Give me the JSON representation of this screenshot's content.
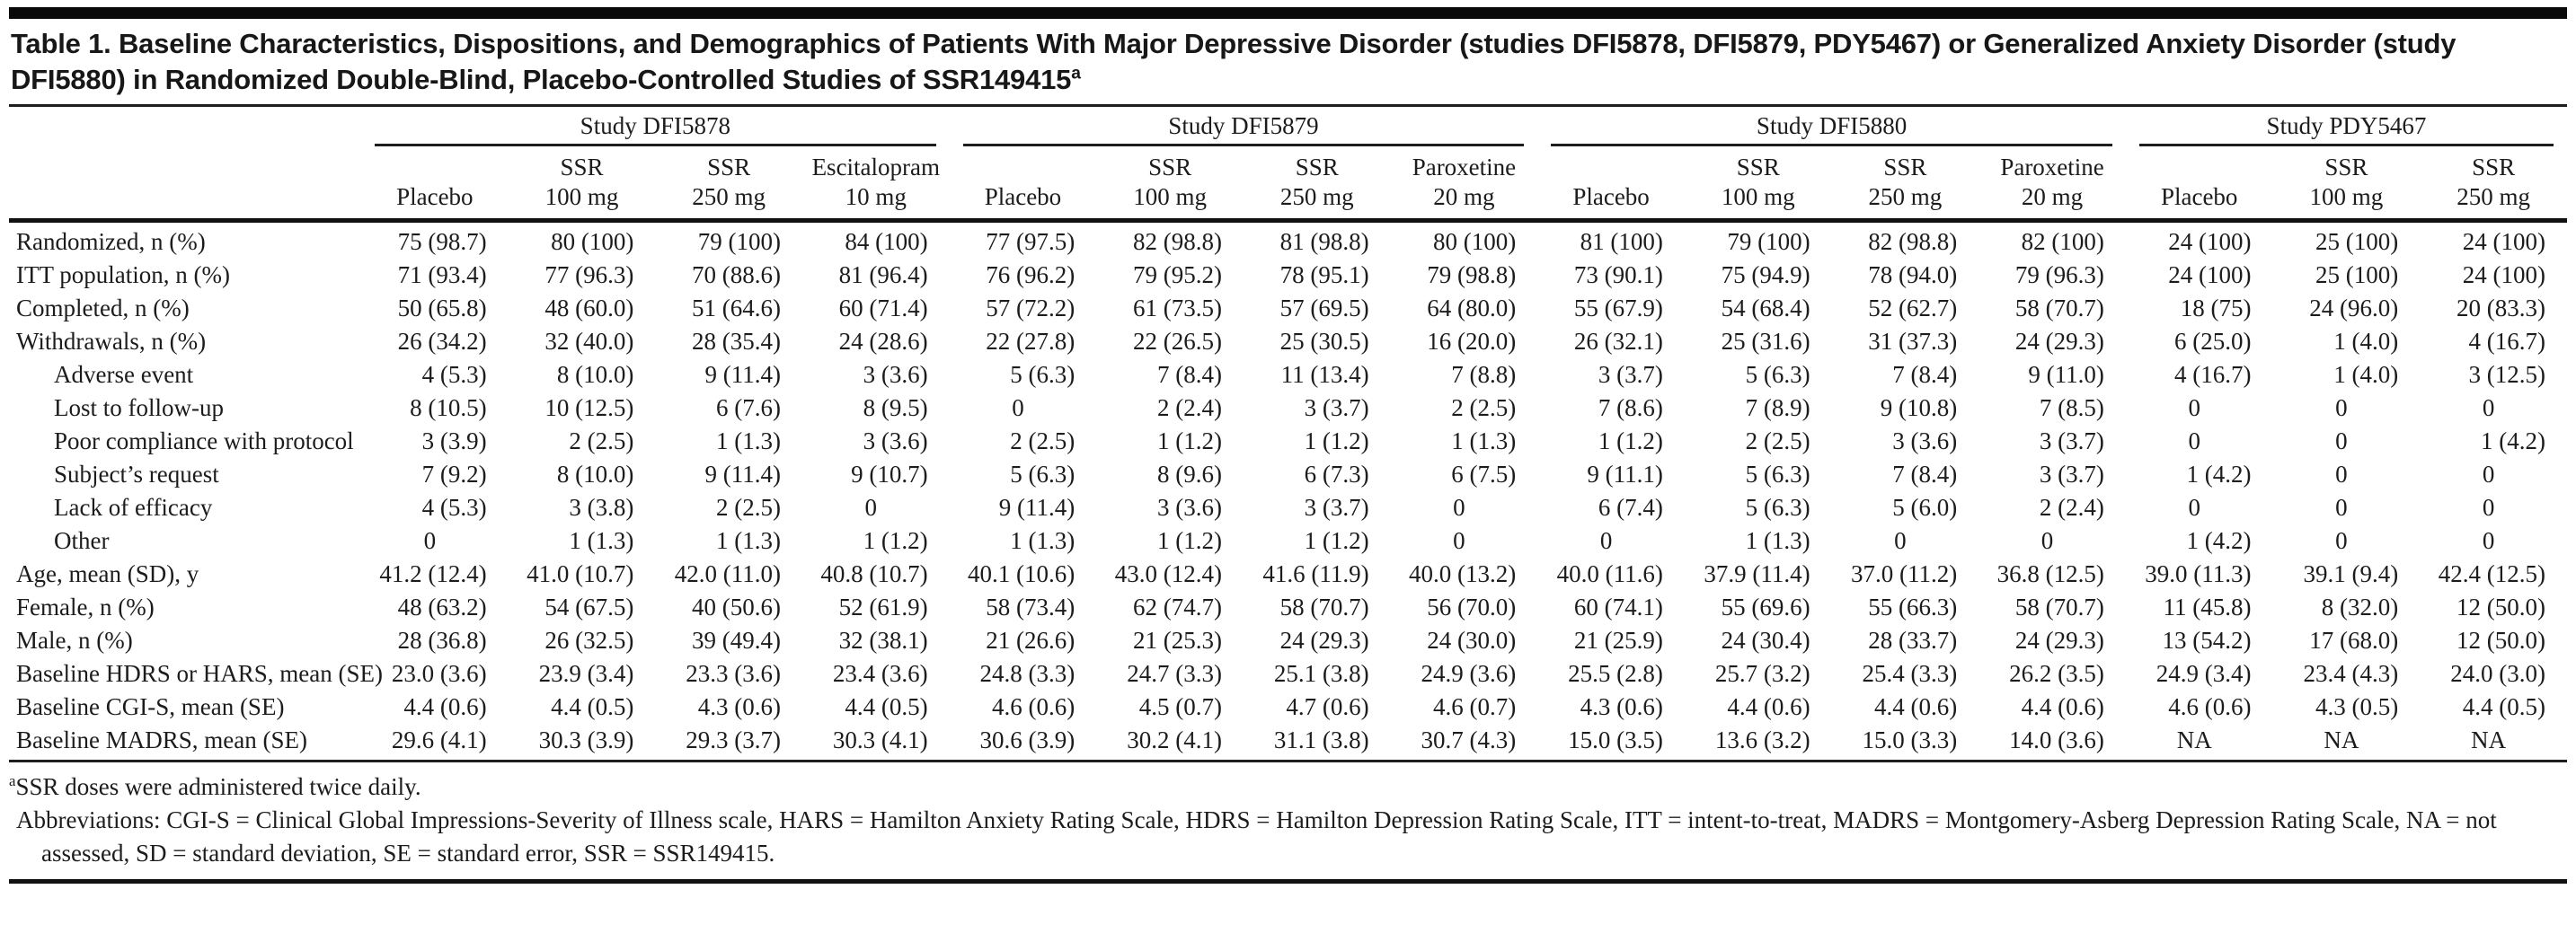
{
  "title": {
    "text": "Table 1. Baseline Characteristics, Dispositions, and Demographics of Patients With Major Depressive Disorder (studies DFI5878, DFI5879, PDY5467) or Generalized Anxiety Disorder (study DFI5880) in Randomized Double-Blind, Placebo-Controlled Studies of SSR149415",
    "superscript": "a"
  },
  "header": {
    "studies": [
      {
        "name": "Study DFI5878",
        "arms": [
          {
            "top": "",
            "bottom": "Placebo"
          },
          {
            "top": "SSR",
            "bottom": "100 mg"
          },
          {
            "top": "SSR",
            "bottom": "250 mg"
          },
          {
            "top": "Escitalopram",
            "bottom": "10 mg"
          }
        ]
      },
      {
        "name": "Study DFI5879",
        "arms": [
          {
            "top": "",
            "bottom": "Placebo"
          },
          {
            "top": "SSR",
            "bottom": "100 mg"
          },
          {
            "top": "SSR",
            "bottom": "250 mg"
          },
          {
            "top": "Paroxetine",
            "bottom": "20 mg"
          }
        ]
      },
      {
        "name": "Study DFI5880",
        "arms": [
          {
            "top": "",
            "bottom": "Placebo"
          },
          {
            "top": "SSR",
            "bottom": "100 mg"
          },
          {
            "top": "SSR",
            "bottom": "250 mg"
          },
          {
            "top": "Paroxetine",
            "bottom": "20 mg"
          }
        ]
      },
      {
        "name": "Study PDY5467",
        "arms": [
          {
            "top": "",
            "bottom": "Placebo"
          },
          {
            "top": "SSR",
            "bottom": "100 mg"
          },
          {
            "top": "SSR",
            "bottom": "250 mg"
          }
        ]
      }
    ]
  },
  "rows": [
    {
      "label": "Randomized, n (%)",
      "indent": 0,
      "values": [
        "75 (98.7)",
        "80 (100)",
        "79 (100)",
        "84 (100)",
        "77 (97.5)",
        "82 (98.8)",
        "81 (98.8)",
        "80 (100)",
        "81 (100)",
        "79 (100)",
        "82 (98.8)",
        "82 (100)",
        "24 (100)",
        "25 (100)",
        "24 (100)"
      ]
    },
    {
      "label": "ITT population, n (%)",
      "indent": 0,
      "values": [
        "71 (93.4)",
        "77 (96.3)",
        "70 (88.6)",
        "81 (96.4)",
        "76 (96.2)",
        "79 (95.2)",
        "78 (95.1)",
        "79 (98.8)",
        "73 (90.1)",
        "75 (94.9)",
        "78 (94.0)",
        "79 (96.3)",
        "24 (100)",
        "25 (100)",
        "24 (100)"
      ]
    },
    {
      "label": "Completed, n (%)",
      "indent": 0,
      "values": [
        "50 (65.8)",
        "48 (60.0)",
        "51 (64.6)",
        "60 (71.4)",
        "57 (72.2)",
        "61 (73.5)",
        "57 (69.5)",
        "64 (80.0)",
        "55 (67.9)",
        "54 (68.4)",
        "52 (62.7)",
        "58 (70.7)",
        "18 (75)",
        "24 (96.0)",
        "20 (83.3)"
      ]
    },
    {
      "label": "Withdrawals, n (%)",
      "indent": 0,
      "values": [
        "26 (34.2)",
        "32 (40.0)",
        "28 (35.4)",
        "24 (28.6)",
        "22 (27.8)",
        "22 (26.5)",
        "25 (30.5)",
        "16 (20.0)",
        "26 (32.1)",
        "25 (31.6)",
        "31 (37.3)",
        "24 (29.3)",
        "6 (25.0)",
        "1 (4.0)",
        "4 (16.7)"
      ]
    },
    {
      "label": "Adverse event",
      "indent": 1,
      "values": [
        "4 (5.3)",
        "8 (10.0)",
        "9 (11.4)",
        "3 (3.6)",
        "5 (6.3)",
        "7 (8.4)",
        "11 (13.4)",
        "7 (8.8)",
        "3 (3.7)",
        "5 (6.3)",
        "7 (8.4)",
        "9 (11.0)",
        "4 (16.7)",
        "1 (4.0)",
        "3 (12.5)"
      ]
    },
    {
      "label": "Lost to follow-up",
      "indent": 1,
      "values": [
        "8 (10.5)",
        "10 (12.5)",
        "6 (7.6)",
        "8 (9.5)",
        "0",
        "2 (2.4)",
        "3 (3.7)",
        "2 (2.5)",
        "7 (8.6)",
        "7 (8.9)",
        "9 (10.8)",
        "7 (8.5)",
        "0",
        "0",
        "0"
      ]
    },
    {
      "label": "Poor compliance with protocol",
      "indent": 1,
      "values": [
        "3 (3.9)",
        "2 (2.5)",
        "1 (1.3)",
        "3 (3.6)",
        "2 (2.5)",
        "1 (1.2)",
        "1 (1.2)",
        "1 (1.3)",
        "1 (1.2)",
        "2 (2.5)",
        "3 (3.6)",
        "3 (3.7)",
        "0",
        "0",
        "1 (4.2)"
      ]
    },
    {
      "label": "Subject’s request",
      "indent": 1,
      "values": [
        "7 (9.2)",
        "8 (10.0)",
        "9 (11.4)",
        "9 (10.7)",
        "5 (6.3)",
        "8 (9.6)",
        "6 (7.3)",
        "6 (7.5)",
        "9 (11.1)",
        "5 (6.3)",
        "7 (8.4)",
        "3 (3.7)",
        "1 (4.2)",
        "0",
        "0"
      ]
    },
    {
      "label": "Lack of efficacy",
      "indent": 1,
      "values": [
        "4 (5.3)",
        "3 (3.8)",
        "2 (2.5)",
        "0",
        "9 (11.4)",
        "3 (3.6)",
        "3 (3.7)",
        "0",
        "6 (7.4)",
        "5 (6.3)",
        "5 (6.0)",
        "2 (2.4)",
        "0",
        "0",
        "0"
      ]
    },
    {
      "label": "Other",
      "indent": 1,
      "values": [
        "0",
        "1 (1.3)",
        "1 (1.3)",
        "1 (1.2)",
        "1 (1.3)",
        "1 (1.2)",
        "1 (1.2)",
        "0",
        "0",
        "1 (1.3)",
        "0",
        "0",
        "1 (4.2)",
        "0",
        "0"
      ]
    },
    {
      "label": "Age, mean (SD), y",
      "indent": 0,
      "values": [
        "41.2 (12.4)",
        "41.0 (10.7)",
        "42.0 (11.0)",
        "40.8 (10.7)",
        "40.1 (10.6)",
        "43.0 (12.4)",
        "41.6 (11.9)",
        "40.0 (13.2)",
        "40.0 (11.6)",
        "37.9 (11.4)",
        "37.0 (11.2)",
        "36.8 (12.5)",
        "39.0 (11.3)",
        "39.1 (9.4)",
        "42.4 (12.5)"
      ]
    },
    {
      "label": "Female, n (%)",
      "indent": 0,
      "values": [
        "48 (63.2)",
        "54 (67.5)",
        "40 (50.6)",
        "52 (61.9)",
        "58 (73.4)",
        "62 (74.7)",
        "58 (70.7)",
        "56 (70.0)",
        "60 (74.1)",
        "55 (69.6)",
        "55 (66.3)",
        "58 (70.7)",
        "11 (45.8)",
        "8 (32.0)",
        "12 (50.0)"
      ]
    },
    {
      "label": "Male, n (%)",
      "indent": 0,
      "values": [
        "28 (36.8)",
        "26 (32.5)",
        "39 (49.4)",
        "32 (38.1)",
        "21 (26.6)",
        "21 (25.3)",
        "24 (29.3)",
        "24 (30.0)",
        "21 (25.9)",
        "24 (30.4)",
        "28 (33.7)",
        "24 (29.3)",
        "13 (54.2)",
        "17 (68.0)",
        "12 (50.0)"
      ]
    },
    {
      "label": "Baseline HDRS or HARS, mean (SE)",
      "indent": 0,
      "values": [
        "23.0 (3.6)",
        "23.9 (3.4)",
        "23.3 (3.6)",
        "23.4 (3.6)",
        "24.8 (3.3)",
        "24.7 (3.3)",
        "25.1 (3.8)",
        "24.9 (3.6)",
        "25.5 (2.8)",
        "25.7 (3.2)",
        "25.4 (3.3)",
        "26.2 (3.5)",
        "24.9 (3.4)",
        "23.4 (4.3)",
        "24.0 (3.0)"
      ]
    },
    {
      "label": "Baseline CGI-S, mean (SE)",
      "indent": 0,
      "values": [
        "4.4 (0.6)",
        "4.4 (0.5)",
        "4.3 (0.6)",
        "4.4 (0.5)",
        "4.6 (0.6)",
        "4.5 (0.7)",
        "4.7 (0.6)",
        "4.6 (0.7)",
        "4.3 (0.6)",
        "4.4 (0.6)",
        "4.4 (0.6)",
        "4.4 (0.6)",
        "4.6 (0.6)",
        "4.3 (0.5)",
        "4.4 (0.5)"
      ]
    },
    {
      "label": "Baseline MADRS, mean (SE)",
      "indent": 0,
      "values": [
        "29.6 (4.1)",
        "30.3 (3.9)",
        "29.3 (3.7)",
        "30.3 (4.1)",
        "30.6 (3.9)",
        "30.2 (4.1)",
        "31.1 (3.8)",
        "30.7 (4.3)",
        "15.0 (3.5)",
        "13.6 (3.2)",
        "15.0 (3.3)",
        "14.0 (3.6)",
        "NA",
        "NA",
        "NA"
      ]
    }
  ],
  "footnotes": {
    "dose_sup": "a",
    "dose_text": "SSR doses were administered twice daily.",
    "abbreviations": "Abbreviations: CGI-S = Clinical Global Impressions-Severity of Illness scale, HARS = Hamilton Anxiety Rating Scale, HDRS = Hamilton Depression Rating Scale, ITT = intent-to-treat, MADRS = Montgomery-Asberg Depression Rating Scale, NA = not assessed, SD = standard deviation, SE = standard error, SSR = SSR149415."
  }
}
